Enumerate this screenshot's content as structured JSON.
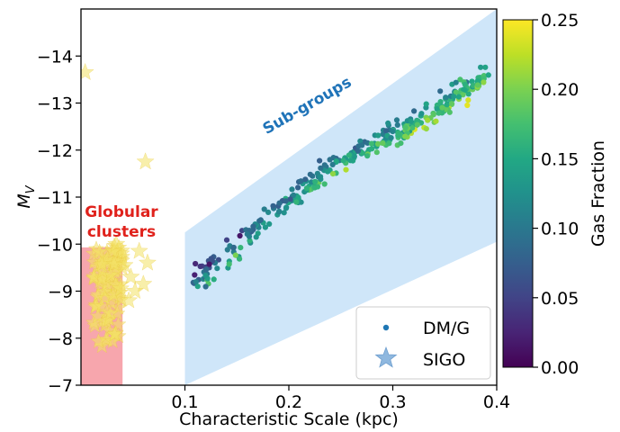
{
  "chart_data": {
    "type": "scatter",
    "xlabel": "Characteristic Scale (kpc)",
    "ylabel": "M",
    "ylabel_sub": "V",
    "xlim": [
      0.0,
      0.4
    ],
    "ylim": [
      -7,
      -15
    ],
    "y_inverted": true,
    "x_ticks": [
      "0.1",
      "0.2",
      "0.3",
      "0.4"
    ],
    "x_tick_values": [
      0.1,
      0.2,
      0.3,
      0.4
    ],
    "y_ticks": [
      "−14",
      "−13",
      "−12",
      "−11",
      "−10",
      "−9",
      "−8",
      "−7"
    ],
    "y_tick_values": [
      -14,
      -13,
      -12,
      -11,
      -10,
      -9,
      -8,
      -7
    ],
    "colorbar": {
      "label": "Gas Fraction",
      "range": [
        0.0,
        0.25
      ],
      "ticks": [
        "0.00",
        "0.05",
        "0.10",
        "0.15",
        "0.20",
        "0.25"
      ],
      "tick_values": [
        0.0,
        0.05,
        0.1,
        0.15,
        0.2,
        0.25
      ],
      "colormap": "viridis"
    },
    "regions": {
      "globular": {
        "label_line1": "Globular",
        "label_line2": "clusters",
        "x": [
          0.0,
          0.04
        ],
        "y": [
          -7,
          -9.93
        ],
        "color": "#f7a6ad",
        "label_color": "#e0221c"
      },
      "subgroups": {
        "label": "Sub-groups",
        "polygon": [
          [
            0.1,
            -10.25
          ],
          [
            0.4,
            -15
          ],
          [
            0.4,
            -10.05
          ],
          [
            0.1,
            -7
          ]
        ],
        "color": "#cfe6f9",
        "label_color": "#1f73b8"
      }
    },
    "legend": {
      "placement": "lower-right",
      "entries": [
        {
          "label": "DM/G",
          "marker": "dot",
          "color": "#1f77b4"
        },
        {
          "label": "SIGO",
          "marker": "star",
          "color": "#8fb8df"
        }
      ]
    },
    "series": [
      {
        "name": "DM/G",
        "marker": "dot",
        "trend": {
          "x": [
            0.11,
            0.12,
            0.14,
            0.16,
            0.18,
            0.2,
            0.22,
            0.25,
            0.28,
            0.3,
            0.32,
            0.34,
            0.36,
            0.38,
            0.39
          ],
          "y": [
            -9.2,
            -9.35,
            -9.75,
            -10.15,
            -10.55,
            -10.9,
            -11.3,
            -11.75,
            -12.1,
            -12.3,
            -12.55,
            -12.85,
            -13.15,
            -13.4,
            -13.6
          ]
        },
        "count": 340
      },
      {
        "name": "SIGO",
        "marker": "star",
        "points": [
          [
            0.004,
            -13.65
          ],
          [
            0.062,
            -11.75
          ],
          [
            0.034,
            -10.0
          ],
          [
            0.056,
            -9.85
          ],
          [
            0.064,
            -9.6
          ],
          [
            0.048,
            -9.3
          ],
          [
            0.052,
            -9.0
          ],
          [
            0.06,
            -9.15
          ],
          [
            0.042,
            -9.55
          ],
          [
            0.046,
            -8.8
          ],
          [
            0.038,
            -9.05
          ]
        ],
        "cluster": {
          "x": [
            0.012,
            0.04
          ],
          "y": [
            -7.8,
            -10.0
          ],
          "count": 95
        },
        "color": "#f3e165"
      }
    ]
  }
}
